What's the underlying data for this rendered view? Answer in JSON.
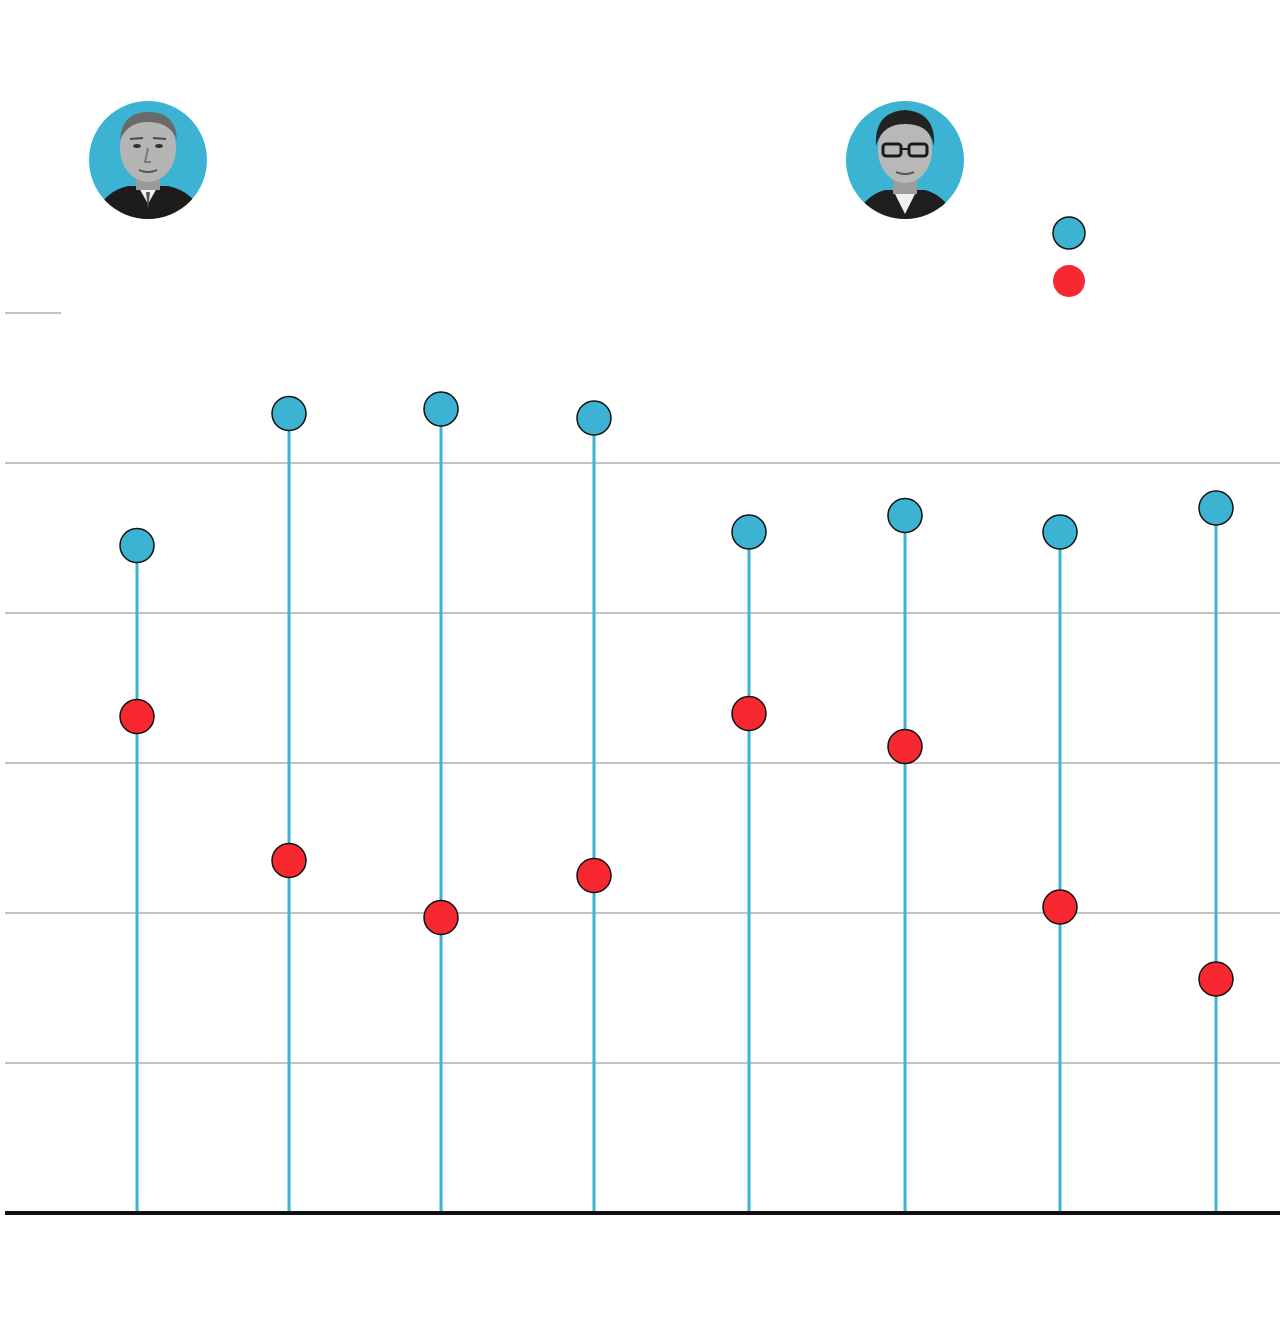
{
  "colors": {
    "series_a": "#3db3d3",
    "series_b": "#f7282f",
    "stem": "#3db3d3",
    "grid": "#c4c4c4",
    "baseline": "#111111",
    "marker_outline": "#111111",
    "avatar_bg": "#3db3d3"
  },
  "avatars": [
    {
      "name": "portrait-left-avatar",
      "icon": "person-portrait-icon"
    },
    {
      "name": "portrait-right-avatar",
      "icon": "person-portrait-icon"
    }
  ],
  "legend": {
    "placement": "top-right",
    "items": [
      {
        "name": "",
        "color": "#3db3d3"
      },
      {
        "name": "",
        "color": "#f7282f"
      }
    ]
  },
  "chart_data": {
    "type": "scatter",
    "subtype": "dumbbell",
    "title": "",
    "xlabel": "",
    "ylabel": "",
    "categories": [
      "",
      "",
      "",
      "",
      "",
      "",
      "",
      ""
    ],
    "ylim": [
      0,
      54
    ],
    "grid": true,
    "gridlines": [
      10,
      20,
      30,
      40,
      50
    ],
    "series": [
      {
        "name": "",
        "color": "#3db3d3",
        "values": [
          44.5,
          53.3,
          53.6,
          53.0,
          45.4,
          46.5,
          45.4,
          47.0
        ]
      },
      {
        "name": "",
        "color": "#f7282f",
        "values": [
          33.1,
          23.5,
          19.7,
          22.5,
          33.3,
          31.1,
          20.4,
          15.6
        ]
      }
    ]
  }
}
